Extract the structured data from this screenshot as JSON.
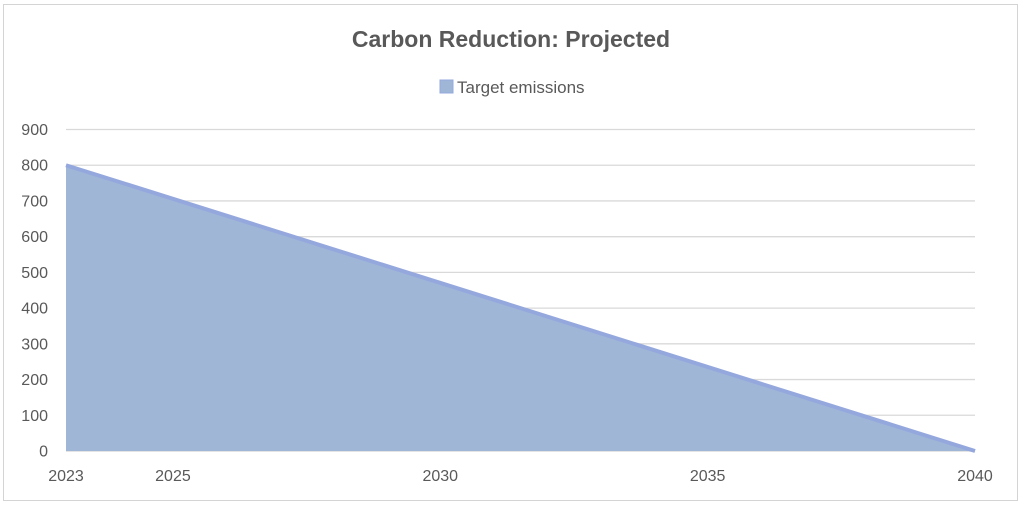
{
  "chart_data": {
    "type": "area",
    "title": "Carbon Reduction: Projected",
    "xlabel": "",
    "ylabel": "",
    "x": [
      2023,
      2040
    ],
    "x_ticks": [
      2023,
      2025,
      2030,
      2035,
      2040
    ],
    "y_ticks": [
      0,
      100,
      200,
      300,
      400,
      500,
      600,
      700,
      800,
      900
    ],
    "xlim": [
      2023,
      2040
    ],
    "ylim": [
      0,
      900
    ],
    "grid": true,
    "legend_position": "top",
    "series": [
      {
        "name": "Target emissions",
        "values": [
          800,
          0
        ],
        "fill_color": "#9fb6d7",
        "line_color": "#95a8dd"
      }
    ]
  }
}
